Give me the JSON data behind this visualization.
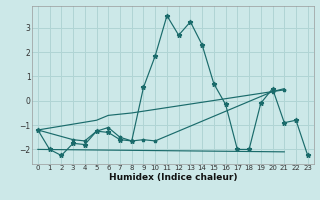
{
  "xlabel": "Humidex (Indice chaleur)",
  "bg_color": "#cce8e8",
  "grid_color": "#b0d4d4",
  "line_color": "#1a6b6b",
  "xlim": [
    -0.5,
    23.5
  ],
  "ylim": [
    -2.6,
    3.9
  ],
  "yticks": [
    -2,
    -1,
    0,
    1,
    2,
    3
  ],
  "xticks": [
    0,
    1,
    2,
    3,
    4,
    5,
    6,
    7,
    8,
    9,
    10,
    11,
    12,
    13,
    14,
    15,
    16,
    17,
    18,
    19,
    20,
    21,
    22,
    23
  ],
  "series_main": [
    [
      0,
      -1.2
    ],
    [
      1,
      -2.0
    ],
    [
      2,
      -2.25
    ],
    [
      3,
      -1.75
    ],
    [
      4,
      -1.8
    ],
    [
      5,
      -1.25
    ],
    [
      6,
      -1.3
    ],
    [
      7,
      -1.6
    ],
    [
      8,
      -1.65
    ],
    [
      9,
      0.55
    ],
    [
      10,
      1.85
    ],
    [
      11,
      3.5
    ],
    [
      12,
      2.7
    ],
    [
      13,
      3.25
    ],
    [
      14,
      2.3
    ],
    [
      15,
      0.7
    ],
    [
      16,
      -0.15
    ],
    [
      17,
      -2.0
    ],
    [
      18,
      -2.0
    ],
    [
      19,
      -0.1
    ],
    [
      20,
      0.5
    ],
    [
      21,
      -0.9
    ],
    [
      22,
      -0.8
    ],
    [
      23,
      -2.25
    ]
  ],
  "series_wiggle": [
    [
      0,
      -1.2
    ],
    [
      3,
      -1.6
    ],
    [
      4,
      -1.65
    ],
    [
      5,
      -1.25
    ],
    [
      6,
      -1.1
    ],
    [
      7,
      -1.5
    ],
    [
      8,
      -1.65
    ],
    [
      9,
      -1.6
    ],
    [
      10,
      -1.65
    ],
    [
      20,
      0.38
    ],
    [
      21,
      0.45
    ]
  ],
  "series_upper_trend": [
    [
      0,
      -1.2
    ],
    [
      5,
      -0.8
    ],
    [
      6,
      -0.6
    ],
    [
      8,
      -0.5
    ],
    [
      20,
      0.38
    ],
    [
      21,
      0.5
    ]
  ],
  "series_lower_trend": [
    [
      0,
      -2.0
    ],
    [
      21,
      -2.1
    ]
  ]
}
